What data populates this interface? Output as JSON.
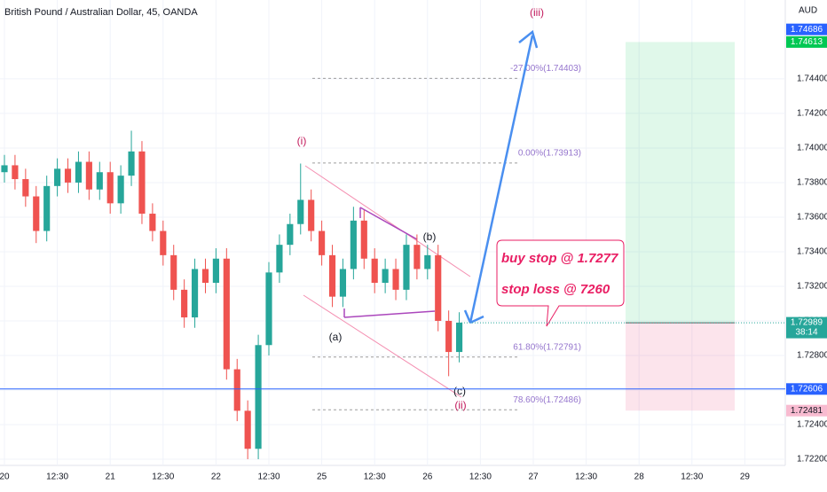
{
  "chart_data": {
    "type": "candlestick",
    "title": "British Pound / Australian Dollar, 45, OANDA",
    "currency": "AUD",
    "x": [
      0,
      0.2,
      0.4,
      0.6,
      0.8,
      1.0,
      1.2,
      1.4,
      1.6,
      1.8,
      2.0,
      2.2,
      2.4,
      2.6,
      2.8,
      3.0,
      3.2,
      3.4,
      3.6,
      3.8,
      4.0,
      4.2,
      4.4,
      4.6,
      4.8,
      5.0,
      5.2,
      5.4,
      5.6,
      5.8,
      6.0,
      6.2,
      6.4,
      6.6,
      6.8,
      7.0,
      7.2,
      7.4,
      7.6,
      7.8,
      8.0,
      8.2,
      8.4,
      8.6
    ],
    "open": [
      1.7386,
      1.739,
      1.7382,
      1.7372,
      1.7352,
      1.7378,
      1.7388,
      1.738,
      1.7392,
      1.7376,
      1.7386,
      1.7368,
      1.7384,
      1.7398,
      1.7362,
      1.7352,
      1.7338,
      1.7318,
      1.7302,
      1.733,
      1.7322,
      1.7336,
      1.7272,
      1.7248,
      1.7226,
      1.7286,
      1.7328,
      1.7344,
      1.7356,
      1.737,
      1.7352,
      1.7338,
      1.7314,
      1.733,
      1.7358,
      1.7336,
      1.7322,
      1.733,
      1.7318,
      1.7344,
      1.733,
      1.7338,
      1.73,
      1.7282
    ],
    "high": [
      1.7396,
      1.7396,
      1.7388,
      1.7378,
      1.7384,
      1.7394,
      1.7394,
      1.7398,
      1.7398,
      1.7392,
      1.7392,
      1.739,
      1.741,
      1.7404,
      1.7368,
      1.7358,
      1.7344,
      1.7324,
      1.7336,
      1.7336,
      1.7342,
      1.7342,
      1.7278,
      1.7254,
      1.7292,
      1.7334,
      1.735,
      1.7362,
      1.7391,
      1.7376,
      1.7358,
      1.7344,
      1.7336,
      1.7366,
      1.7364,
      1.7342,
      1.7336,
      1.7336,
      1.735,
      1.735,
      1.7344,
      1.7344,
      1.7306,
      1.7305
    ],
    "low": [
      1.738,
      1.7376,
      1.7366,
      1.7345,
      1.7346,
      1.7372,
      1.7374,
      1.7374,
      1.737,
      1.737,
      1.7362,
      1.7362,
      1.7378,
      1.7356,
      1.7346,
      1.7332,
      1.7312,
      1.7296,
      1.7296,
      1.7316,
      1.7316,
      1.7266,
      1.7242,
      1.722,
      1.722,
      1.728,
      1.7322,
      1.7338,
      1.735,
      1.7346,
      1.7332,
      1.7308,
      1.7308,
      1.7324,
      1.733,
      1.7316,
      1.7316,
      1.7312,
      1.7312,
      1.7324,
      1.7324,
      1.7294,
      1.7268,
      1.7276
    ],
    "close": [
      1.739,
      1.7382,
      1.7372,
      1.7352,
      1.7378,
      1.7388,
      1.738,
      1.7392,
      1.7376,
      1.7386,
      1.7368,
      1.7384,
      1.7398,
      1.7362,
      1.7352,
      1.7338,
      1.7318,
      1.7302,
      1.733,
      1.7322,
      1.7336,
      1.7272,
      1.7248,
      1.7226,
      1.7286,
      1.7328,
      1.7344,
      1.7356,
      1.737,
      1.7352,
      1.7338,
      1.7314,
      1.733,
      1.7358,
      1.7336,
      1.7322,
      1.733,
      1.7318,
      1.7344,
      1.733,
      1.7338,
      1.73,
      1.7282,
      1.7299
    ],
    "up_color": "#26a69a",
    "down_color": "#ef5350",
    "grid": true,
    "xlim": [
      -0.084,
      14.765
    ],
    "ylim": [
      1.72164,
      1.74856
    ],
    "xticks": [
      {
        "value": 0,
        "label": "20"
      },
      {
        "value": 1,
        "label": "12:30"
      },
      {
        "value": 2,
        "label": "21"
      },
      {
        "value": 3,
        "label": "12:30"
      },
      {
        "value": 4,
        "label": "22"
      },
      {
        "value": 5,
        "label": "12:30"
      },
      {
        "value": 6,
        "label": "25"
      },
      {
        "value": 7,
        "label": "12:30"
      },
      {
        "value": 8,
        "label": "26"
      },
      {
        "value": 9,
        "label": "12:30"
      },
      {
        "value": 10,
        "label": "27"
      },
      {
        "value": 11,
        "label": "12:30"
      },
      {
        "value": 12,
        "label": "28"
      },
      {
        "value": 13,
        "label": "12:30"
      },
      {
        "value": 14,
        "label": "29"
      }
    ],
    "yticks": [
      {
        "value": 1.722,
        "label": "1.72200"
      },
      {
        "value": 1.724,
        "label": "1.72400"
      },
      {
        "value": 1.726,
        "label": "1.72600"
      },
      {
        "value": 1.728,
        "label": "1.72800"
      },
      {
        "value": 1.73,
        "label": "1.73000"
      },
      {
        "value": 1.732,
        "label": "1.73200"
      },
      {
        "value": 1.734,
        "label": "1.73400"
      },
      {
        "value": 1.736,
        "label": "1.73600"
      },
      {
        "value": 1.738,
        "label": "1.73800"
      },
      {
        "value": 1.74,
        "label": "1.74000"
      },
      {
        "value": 1.742,
        "label": "1.74200"
      },
      {
        "value": 1.744,
        "label": "1.74400"
      }
    ],
    "price_labels": [
      {
        "value": 1.74686,
        "label": "1.74686",
        "color": "#2962ff"
      },
      {
        "value": 1.74613,
        "label": "1.74613",
        "color": "#00c853"
      },
      {
        "value": 1.72989,
        "label": "1.72989",
        "color": "#26a69a",
        "line": "dotted"
      },
      {
        "value": 1.72606,
        "label": "1.72606",
        "color": "#2962ff",
        "line": "solid"
      },
      {
        "value": 1.72481,
        "label": "1.72481",
        "color": "#f8bbd0"
      }
    ],
    "countdown": "38:14",
    "fib_levels": [
      {
        "value": 1.74403,
        "label": "-27.00%(1.74403)"
      },
      {
        "value": 1.73913,
        "label": "0.00%(1.73913)"
      },
      {
        "value": 1.72791,
        "label": "61.80%(1.72791)"
      },
      {
        "value": 1.72486,
        "label": "78.60%(1.72486)"
      }
    ],
    "position": {
      "target": 1.74613,
      "entry": 1.72989,
      "stop": 1.72481
    },
    "waves": [
      "(i)",
      "(ii)",
      "(iii)",
      "(a)",
      "(b)",
      "(c)"
    ],
    "note": [
      "buy stop @ 1.7277",
      "stop loss @ 7260"
    ]
  }
}
